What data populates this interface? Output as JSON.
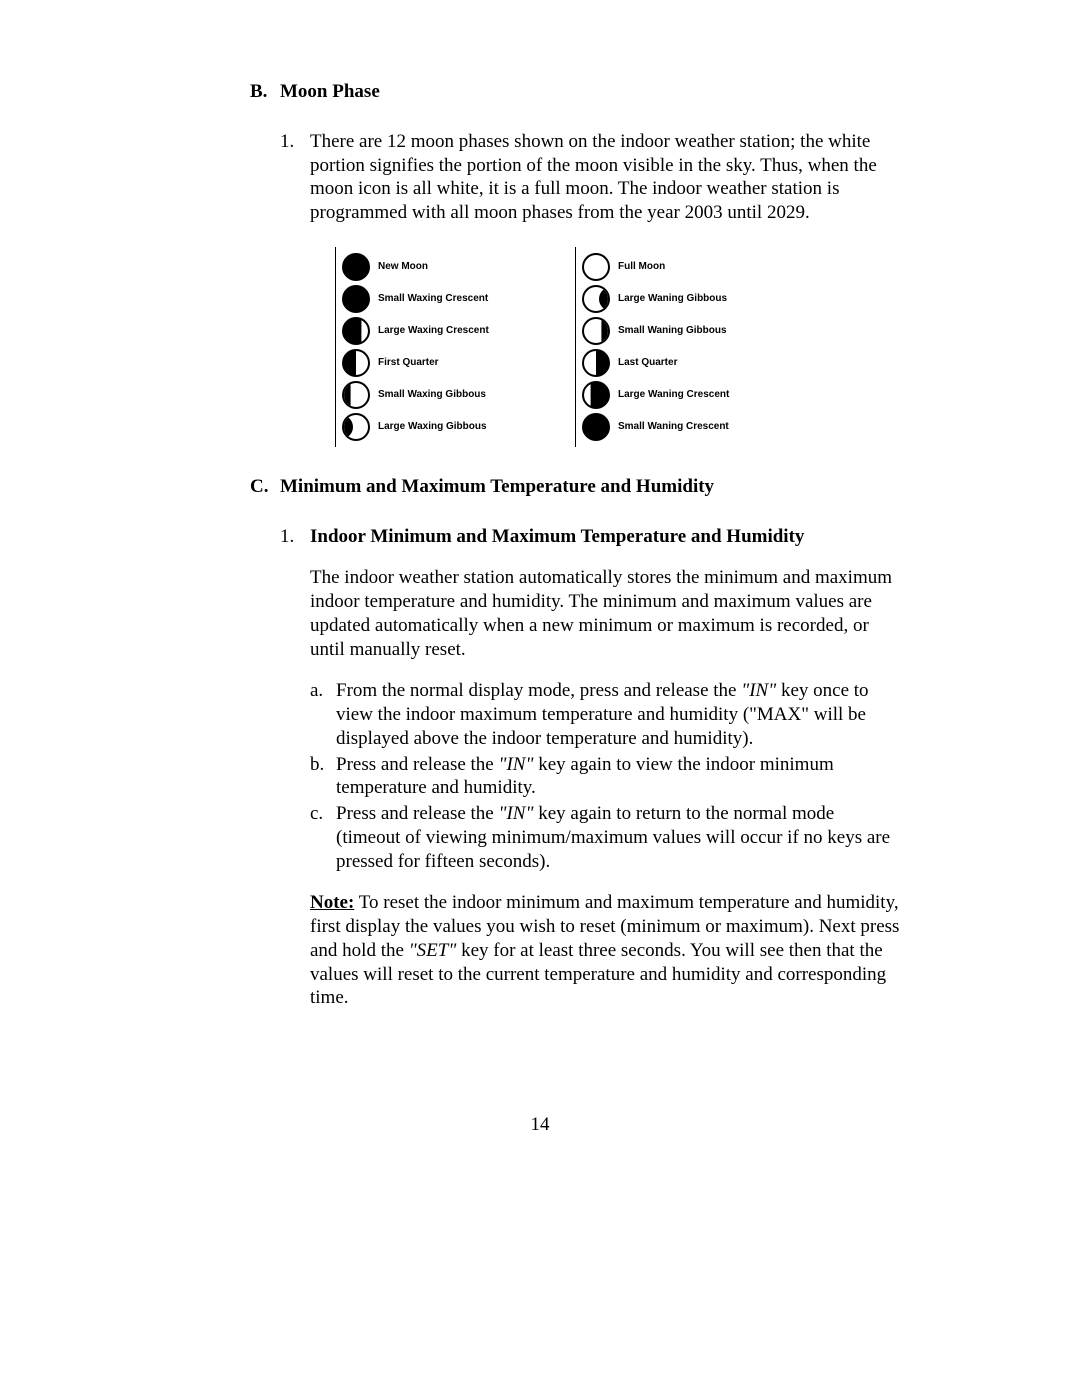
{
  "sectionB": {
    "letter": "B.",
    "title": "Moon Phase",
    "item1": {
      "num": "1.",
      "text": "There are 12 moon phases shown on the indoor weather station; the white portion signifies the portion of the moon visible in the sky. Thus, when the moon icon is all white, it is a full moon. The indoor weather station is programmed with all moon phases from the year 2003 until 2029."
    }
  },
  "moonPhases": {
    "left": [
      "New Moon",
      "Small Waxing Crescent",
      "Large Waxing Crescent",
      "First Quarter",
      "Small Waxing Gibbous",
      "Large Waxing Gibbous"
    ],
    "right": [
      "Full Moon",
      "Large Waning Gibbous",
      "Small Waning Gibbous",
      "Last Quarter",
      "Large Waning Crescent",
      "Small Waning Crescent"
    ]
  },
  "sectionC": {
    "letter": "C.",
    "title": "Minimum and Maximum Temperature and Humidity",
    "sub1": {
      "num": "1.",
      "title": "Indoor Minimum and Maximum Temperature and Humidity",
      "para": "The indoor weather station automatically stores the minimum and maximum indoor temperature and humidity.  The minimum and maximum values are updated automatically when a new minimum or maximum is recorded, or until manually reset.",
      "a": {
        "letter": "a.",
        "pre": "From the normal display mode, press and release the ",
        "key": "\"IN\"",
        "post": " key once to view the indoor maximum temperature and humidity (\"MAX\" will be displayed above the indoor temperature and humidity)."
      },
      "b": {
        "letter": "b.",
        "pre": "Press and release the ",
        "key": "\"IN\"",
        "post": " key again to view the indoor minimum temperature and humidity."
      },
      "c": {
        "letter": "c.",
        "pre": "Press and release the ",
        "key": "\"IN\"",
        "post": " key again to return to the normal mode (timeout of viewing minimum/maximum values will occur if no keys are pressed for fifteen seconds)."
      },
      "note": {
        "label": "Note:",
        "pre": "  To reset the indoor minimum and maximum temperature and humidity, first display the values you wish to reset (minimum or maximum).  Next press and hold the ",
        "key": "\"SET\"",
        "post": " key for at least three seconds.  You will see then that the values will reset to the current temperature and humidity and corresponding time."
      }
    }
  },
  "pageNumber": "14"
}
